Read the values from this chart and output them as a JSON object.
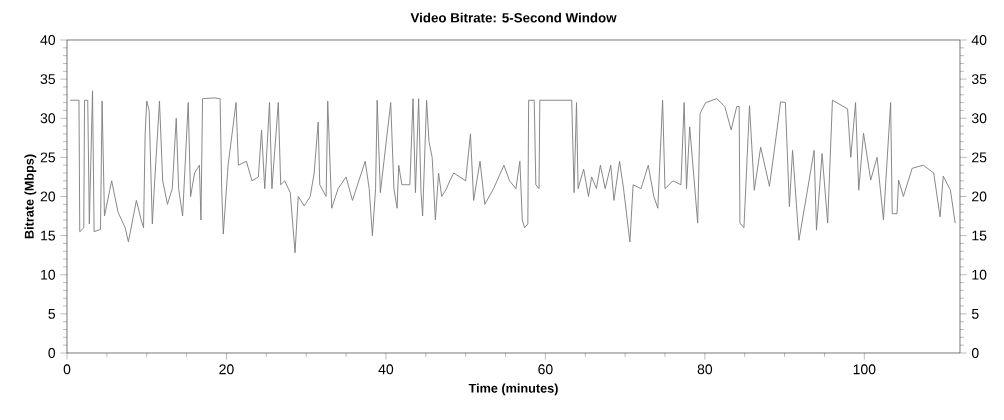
{
  "chart_data": {
    "type": "line",
    "title": "Video Bitrate: 5-Second Window",
    "xlabel": "Time (minutes)",
    "ylabel": "Bitrate (Mbps)",
    "xlim": [
      0,
      112
    ],
    "xticks": [
      0,
      20,
      40,
      60,
      80,
      100
    ],
    "ylim": [
      0,
      40
    ],
    "yticks": [
      0,
      5,
      10,
      15,
      20,
      25,
      30,
      35,
      40
    ],
    "y2lim": [
      0,
      40
    ],
    "y2ticks": [
      0,
      5,
      10,
      15,
      20,
      25,
      30,
      35,
      40
    ],
    "grid": false,
    "marker": "none",
    "line_style": "solid",
    "x": [
      0.4,
      1.5,
      1.6,
      2.1,
      2.2,
      2.6,
      2.8,
      3.2,
      3.4,
      4.2,
      4.4,
      4.7,
      5.6,
      6.4,
      7.3,
      7.7,
      8.7,
      9.3,
      9.6,
      9.8,
      10.0,
      10.3,
      10.7,
      11.0,
      11.6,
      12.0,
      12.6,
      13.2,
      13.7,
      14.0,
      14.5,
      15.2,
      15.5,
      16.0,
      16.6,
      16.8,
      17.0,
      18.5,
      19.2,
      19.4,
      19.6,
      20.2,
      21.2,
      21.5,
      22.5,
      23.2,
      24.0,
      24.4,
      24.8,
      25.4,
      25.7,
      26.5,
      26.8,
      27.3,
      28.0,
      28.6,
      29.0,
      29.75,
      30.5,
      31.0,
      31.5,
      31.7,
      32.5,
      32.7,
      33.2,
      34.0,
      35.0,
      35.8,
      36.6,
      37.4,
      37.9,
      38.3,
      38.7,
      38.9,
      39.3,
      40.6,
      41.0,
      41.4,
      41.6,
      42.0,
      43.0,
      43.4,
      43.7,
      44.1,
      44.4,
      44.6,
      45.1,
      45.4,
      45.8,
      46.2,
      46.6,
      47.0,
      47.6,
      48.0,
      48.5,
      50.0,
      50.6,
      51.0,
      51.8,
      52.4,
      53.5,
      54.8,
      55.5,
      56.3,
      56.8,
      57.1,
      57.4,
      57.8,
      57.9,
      58.6,
      58.8,
      59.2,
      59.3,
      63.3,
      63.6,
      63.9,
      64.1,
      64.8,
      65.4,
      65.8,
      66.4,
      66.9,
      67.5,
      68.2,
      68.6,
      69.3,
      69.8,
      70.6,
      71.0,
      72.0,
      72.9,
      73.6,
      74.1,
      74.7,
      75.0,
      76.0,
      77.0,
      77.4,
      77.7,
      78.1,
      79.1,
      79.4,
      80.1,
      81.5,
      82.5,
      83.3,
      84.0,
      84.3,
      84.4,
      84.9,
      85.6,
      86.2,
      87.0,
      88.1,
      89.1,
      89.5,
      90.1,
      90.6,
      91.0,
      91.8,
      92.8,
      93.7,
      94.0,
      94.7,
      95.4,
      96.0,
      97.9,
      98.3,
      98.9,
      99.3,
      99.9,
      100.8,
      101.6,
      102.4,
      103.3,
      103.5,
      104.1,
      104.3,
      104.9,
      106.0,
      107.4,
      108.7,
      109.5,
      109.9,
      110.8,
      111.4
    ],
    "values": [
      32.3,
      32.3,
      15.5,
      16,
      32.3,
      32.3,
      16.5,
      33.5,
      15.5,
      15.8,
      32.2,
      17.5,
      22,
      18,
      16,
      14.2,
      19.5,
      17,
      16,
      28,
      32.2,
      31,
      16.5,
      22,
      32.2,
      22,
      19,
      21,
      30,
      21,
      17.5,
      32,
      20,
      23,
      24,
      17,
      32.5,
      32.6,
      32.5,
      21,
      15.2,
      24,
      32,
      24,
      24.5,
      22,
      22.5,
      28.5,
      21,
      32,
      21,
      32,
      21.5,
      22,
      20.5,
      12.8,
      20,
      18.8,
      20,
      23,
      29.5,
      21.5,
      20,
      32.2,
      18.5,
      21,
      22.5,
      19.5,
      22,
      24.5,
      21,
      15,
      21,
      32.3,
      20.5,
      32,
      21,
      18.5,
      24,
      21.5,
      21.5,
      32.5,
      20.5,
      32.5,
      20.5,
      17.5,
      32.3,
      27,
      25,
      17,
      23,
      20,
      21,
      22,
      23,
      22,
      28,
      19.5,
      24.5,
      19,
      21,
      24,
      22,
      21,
      24.5,
      17,
      16,
      16.5,
      32.3,
      32.3,
      21.5,
      21,
      32.3,
      32.3,
      20.5,
      32,
      21,
      23.5,
      20,
      22.5,
      21,
      24,
      21,
      24,
      19.5,
      24.5,
      21,
      14.2,
      21.5,
      21,
      24,
      20,
      18.5,
      32.3,
      21,
      22,
      21.5,
      32,
      21,
      28.9,
      16.6,
      30.6,
      32,
      32.5,
      31.5,
      28.5,
      31.5,
      31.5,
      16.6,
      16,
      31.6,
      20.8,
      26.3,
      21.3,
      28.9,
      32.1,
      32,
      18.7,
      25.9,
      14.4,
      20.4,
      25.9,
      15.7,
      25.5,
      16.6,
      32.3,
      31.2,
      25,
      32,
      20.8,
      28.1,
      22.1,
      25,
      17,
      32,
      17.8,
      17.8,
      22.1,
      20,
      23.6,
      24,
      23,
      17.4,
      22.6,
      20.8,
      16.6
    ],
    "color": "#808080"
  }
}
